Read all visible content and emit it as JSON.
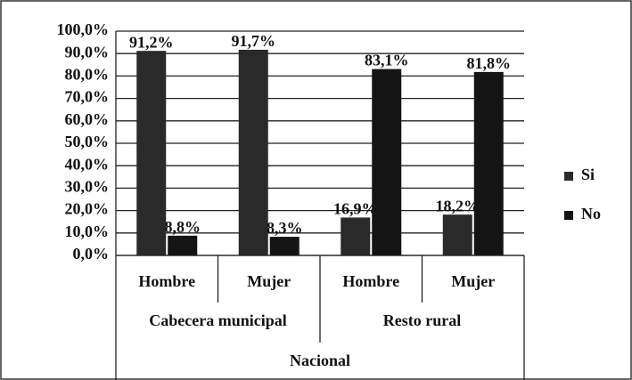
{
  "chart_data": {
    "type": "bar",
    "categories": [
      "Hombre",
      "Mujer",
      "Hombre",
      "Mujer"
    ],
    "category_groups": [
      "Cabecera municipal",
      "Resto rural"
    ],
    "category_super_group": "Nacional",
    "series": [
      {
        "name": "Si",
        "color": "#2a2a2a",
        "values": [
          91.2,
          91.7,
          16.9,
          18.2
        ],
        "value_labels": [
          "91,2%",
          "91,7%",
          "16,9%",
          "18,2%"
        ]
      },
      {
        "name": "No",
        "color": "#141414",
        "values": [
          8.8,
          8.3,
          83.1,
          81.8
        ],
        "value_labels": [
          "8,8%",
          "8,3%",
          "83,1%",
          "81,8%"
        ]
      }
    ],
    "ylim": [
      0,
      100
    ],
    "yticks": [
      {
        "value": 0,
        "label": "0,0%"
      },
      {
        "value": 10,
        "label": "10,0%"
      },
      {
        "value": 20,
        "label": "20,0%"
      },
      {
        "value": 30,
        "label": "30,0%"
      },
      {
        "value": 40,
        "label": "40,0%"
      },
      {
        "value": 50,
        "label": "50,0%"
      },
      {
        "value": 60,
        "label": "60,0%"
      },
      {
        "value": 70,
        "label": "70,0%"
      },
      {
        "value": 80,
        "label": "80,0%"
      },
      {
        "value": 90,
        "label": "90,0%"
      },
      {
        "value": 100,
        "label": "100,0%"
      }
    ],
    "grid": true,
    "legend": "right"
  }
}
